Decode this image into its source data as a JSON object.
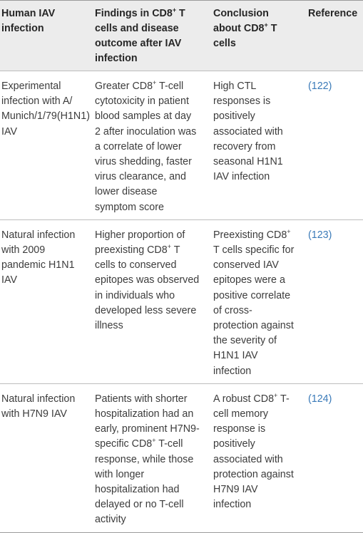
{
  "table": {
    "headers": [
      {
        "text": "Human IAV infection"
      },
      {
        "pre": "Findings in CD8",
        "sup": "+",
        "post": " T cells and disease outcome after IAV infection"
      },
      {
        "pre": "Conclusion about CD8",
        "sup": "+",
        "post": " T cells"
      },
      {
        "text": "Reference"
      }
    ],
    "rows": [
      {
        "infection": "Experimental infection with A/ Munich/1/79(H1N1) IAV",
        "findings_pre": "Greater CD8",
        "findings_sup": "+",
        "findings_post": " T-cell cytotoxicity in patient blood samples at day 2 after inoculation was a correlate of lower virus shedding, faster virus clearance, and lower disease symptom score",
        "conclusion_pre": "High CTL responses is positively associated with recovery from seasonal H1N1 IAV infection",
        "conclusion_sup": "",
        "conclusion_post": "",
        "reference": "(122)"
      },
      {
        "infection": "Natural infection with 2009 pandemic H1N1 IAV",
        "findings_pre": "Higher proportion of preexisting CD8",
        "findings_sup": "+",
        "findings_post": " T cells to conserved epitopes was observed in individuals who developed less severe illness",
        "conclusion_pre": "Preexisting CD8",
        "conclusion_sup": "+",
        "conclusion_post": " T cells specific for conserved IAV epitopes were a positive correlate of cross-protection against the severity of H1N1 IAV infection",
        "reference": "(123)"
      },
      {
        "infection": "Natural infection with H7N9 IAV",
        "findings_pre": "Patients with shorter hospitalization had an early, prominent H7N9-specific CD8",
        "findings_sup": "+",
        "findings_post": " T-cell response, while those with longer hospitalization had delayed or no T-cell activity",
        "conclusion_pre": "A robust CD8",
        "conclusion_sup": "+",
        "conclusion_post": " T-cell memory response is positively associated with protection against H7N9 IAV infection",
        "reference": "(124)"
      }
    ]
  },
  "colors": {
    "header_bg": "#ececec",
    "text": "#3c3c3c",
    "reference_link": "#3a7ab8"
  }
}
